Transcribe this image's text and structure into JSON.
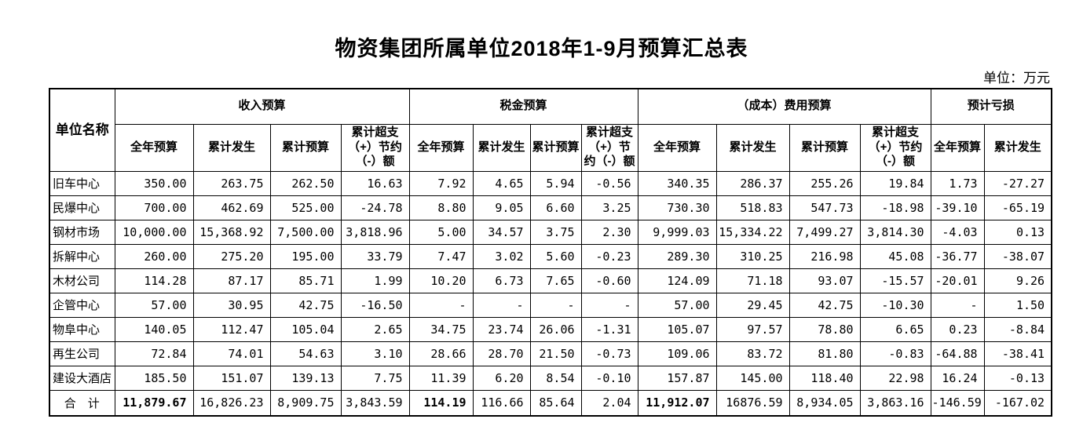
{
  "page": {
    "title": "物资集团所属单位2018年1-9月预算汇总表",
    "unit_note": "单位：万元"
  },
  "table": {
    "corner_header": "单位名称",
    "groups": [
      {
        "label": "收入预算",
        "columns": [
          "全年预算",
          "累计发生",
          "累计预算",
          "累计超支（+）节约（-）额"
        ]
      },
      {
        "label": "税金预算",
        "columns": [
          "全年预算",
          "累计发生",
          "累计预算",
          "累计超支（+）节约（-）额"
        ]
      },
      {
        "label": "（成本）费用预算",
        "columns": [
          "全年预算",
          "累计发生",
          "累计预算",
          "累计超支（+）节约（-）额"
        ]
      },
      {
        "label": "预计亏损",
        "columns": [
          "全年预算",
          "累计发生"
        ]
      }
    ],
    "rows": [
      {
        "unit": "旧车中心",
        "values": [
          "350.00",
          "263.75",
          "262.50",
          "16.63",
          "7.92",
          "4.65",
          "5.94",
          "-0.56",
          "340.35",
          "286.37",
          "255.26",
          "19.84",
          "1.73",
          "-27.27"
        ]
      },
      {
        "unit": "民爆中心",
        "values": [
          "700.00",
          "462.69",
          "525.00",
          "-24.78",
          "8.80",
          "9.05",
          "6.60",
          "3.25",
          "730.30",
          "518.83",
          "547.73",
          "-18.98",
          "-39.10",
          "-65.19"
        ]
      },
      {
        "unit": "钢材市场",
        "values": [
          "10,000.00",
          "15,368.92",
          "7,500.00",
          "3,818.96",
          "5.00",
          "34.57",
          "3.75",
          "2.30",
          "9,999.03",
          "15,334.22",
          "7,499.27",
          "3,814.30",
          "-4.03",
          "0.13"
        ]
      },
      {
        "unit": "拆解中心",
        "values": [
          "260.00",
          "275.20",
          "195.00",
          "33.79",
          "7.47",
          "3.02",
          "5.60",
          "-0.23",
          "289.30",
          "310.25",
          "216.98",
          "45.08",
          "-36.77",
          "-38.07"
        ]
      },
      {
        "unit": "木材公司",
        "values": [
          "114.28",
          "87.17",
          "85.71",
          "1.99",
          "10.20",
          "6.73",
          "7.65",
          "-0.60",
          "124.09",
          "71.18",
          "93.07",
          "-15.57",
          "-20.01",
          "9.26"
        ]
      },
      {
        "unit": "企管中心",
        "values": [
          "57.00",
          "30.95",
          "42.75",
          "-16.50",
          "-",
          "-",
          "-",
          "-",
          "57.00",
          "29.45",
          "42.75",
          "-10.30",
          "-",
          "1.50"
        ]
      },
      {
        "unit": "物阜中心",
        "values": [
          "140.05",
          "112.47",
          "105.04",
          "2.65",
          "34.75",
          "23.74",
          "26.06",
          "-1.31",
          "105.07",
          "97.57",
          "78.80",
          "6.65",
          "0.23",
          "-8.84"
        ]
      },
      {
        "unit": "再生公司",
        "values": [
          "72.84",
          "74.01",
          "54.63",
          "3.10",
          "28.66",
          "28.70",
          "21.50",
          "-0.73",
          "109.06",
          "83.72",
          "81.80",
          "-0.83",
          "-64.88",
          "-38.41"
        ]
      },
      {
        "unit": "建设大酒店",
        "values": [
          "185.50",
          "151.07",
          "139.13",
          "7.75",
          "11.39",
          "6.20",
          "8.54",
          "-0.10",
          "157.87",
          "145.00",
          "118.40",
          "22.98",
          "16.24",
          "-0.13"
        ]
      },
      {
        "unit": "合　计",
        "is_total": true,
        "bold_value_indices": [
          0,
          4,
          8
        ],
        "values": [
          "11,879.67",
          "16,826.23",
          "8,909.75",
          "3,843.59",
          "114.19",
          "116.66",
          "85.64",
          "2.04",
          "11,912.07",
          "16876.59",
          "8,934.05",
          "3,863.16",
          "-146.59",
          "-167.02"
        ]
      }
    ]
  }
}
